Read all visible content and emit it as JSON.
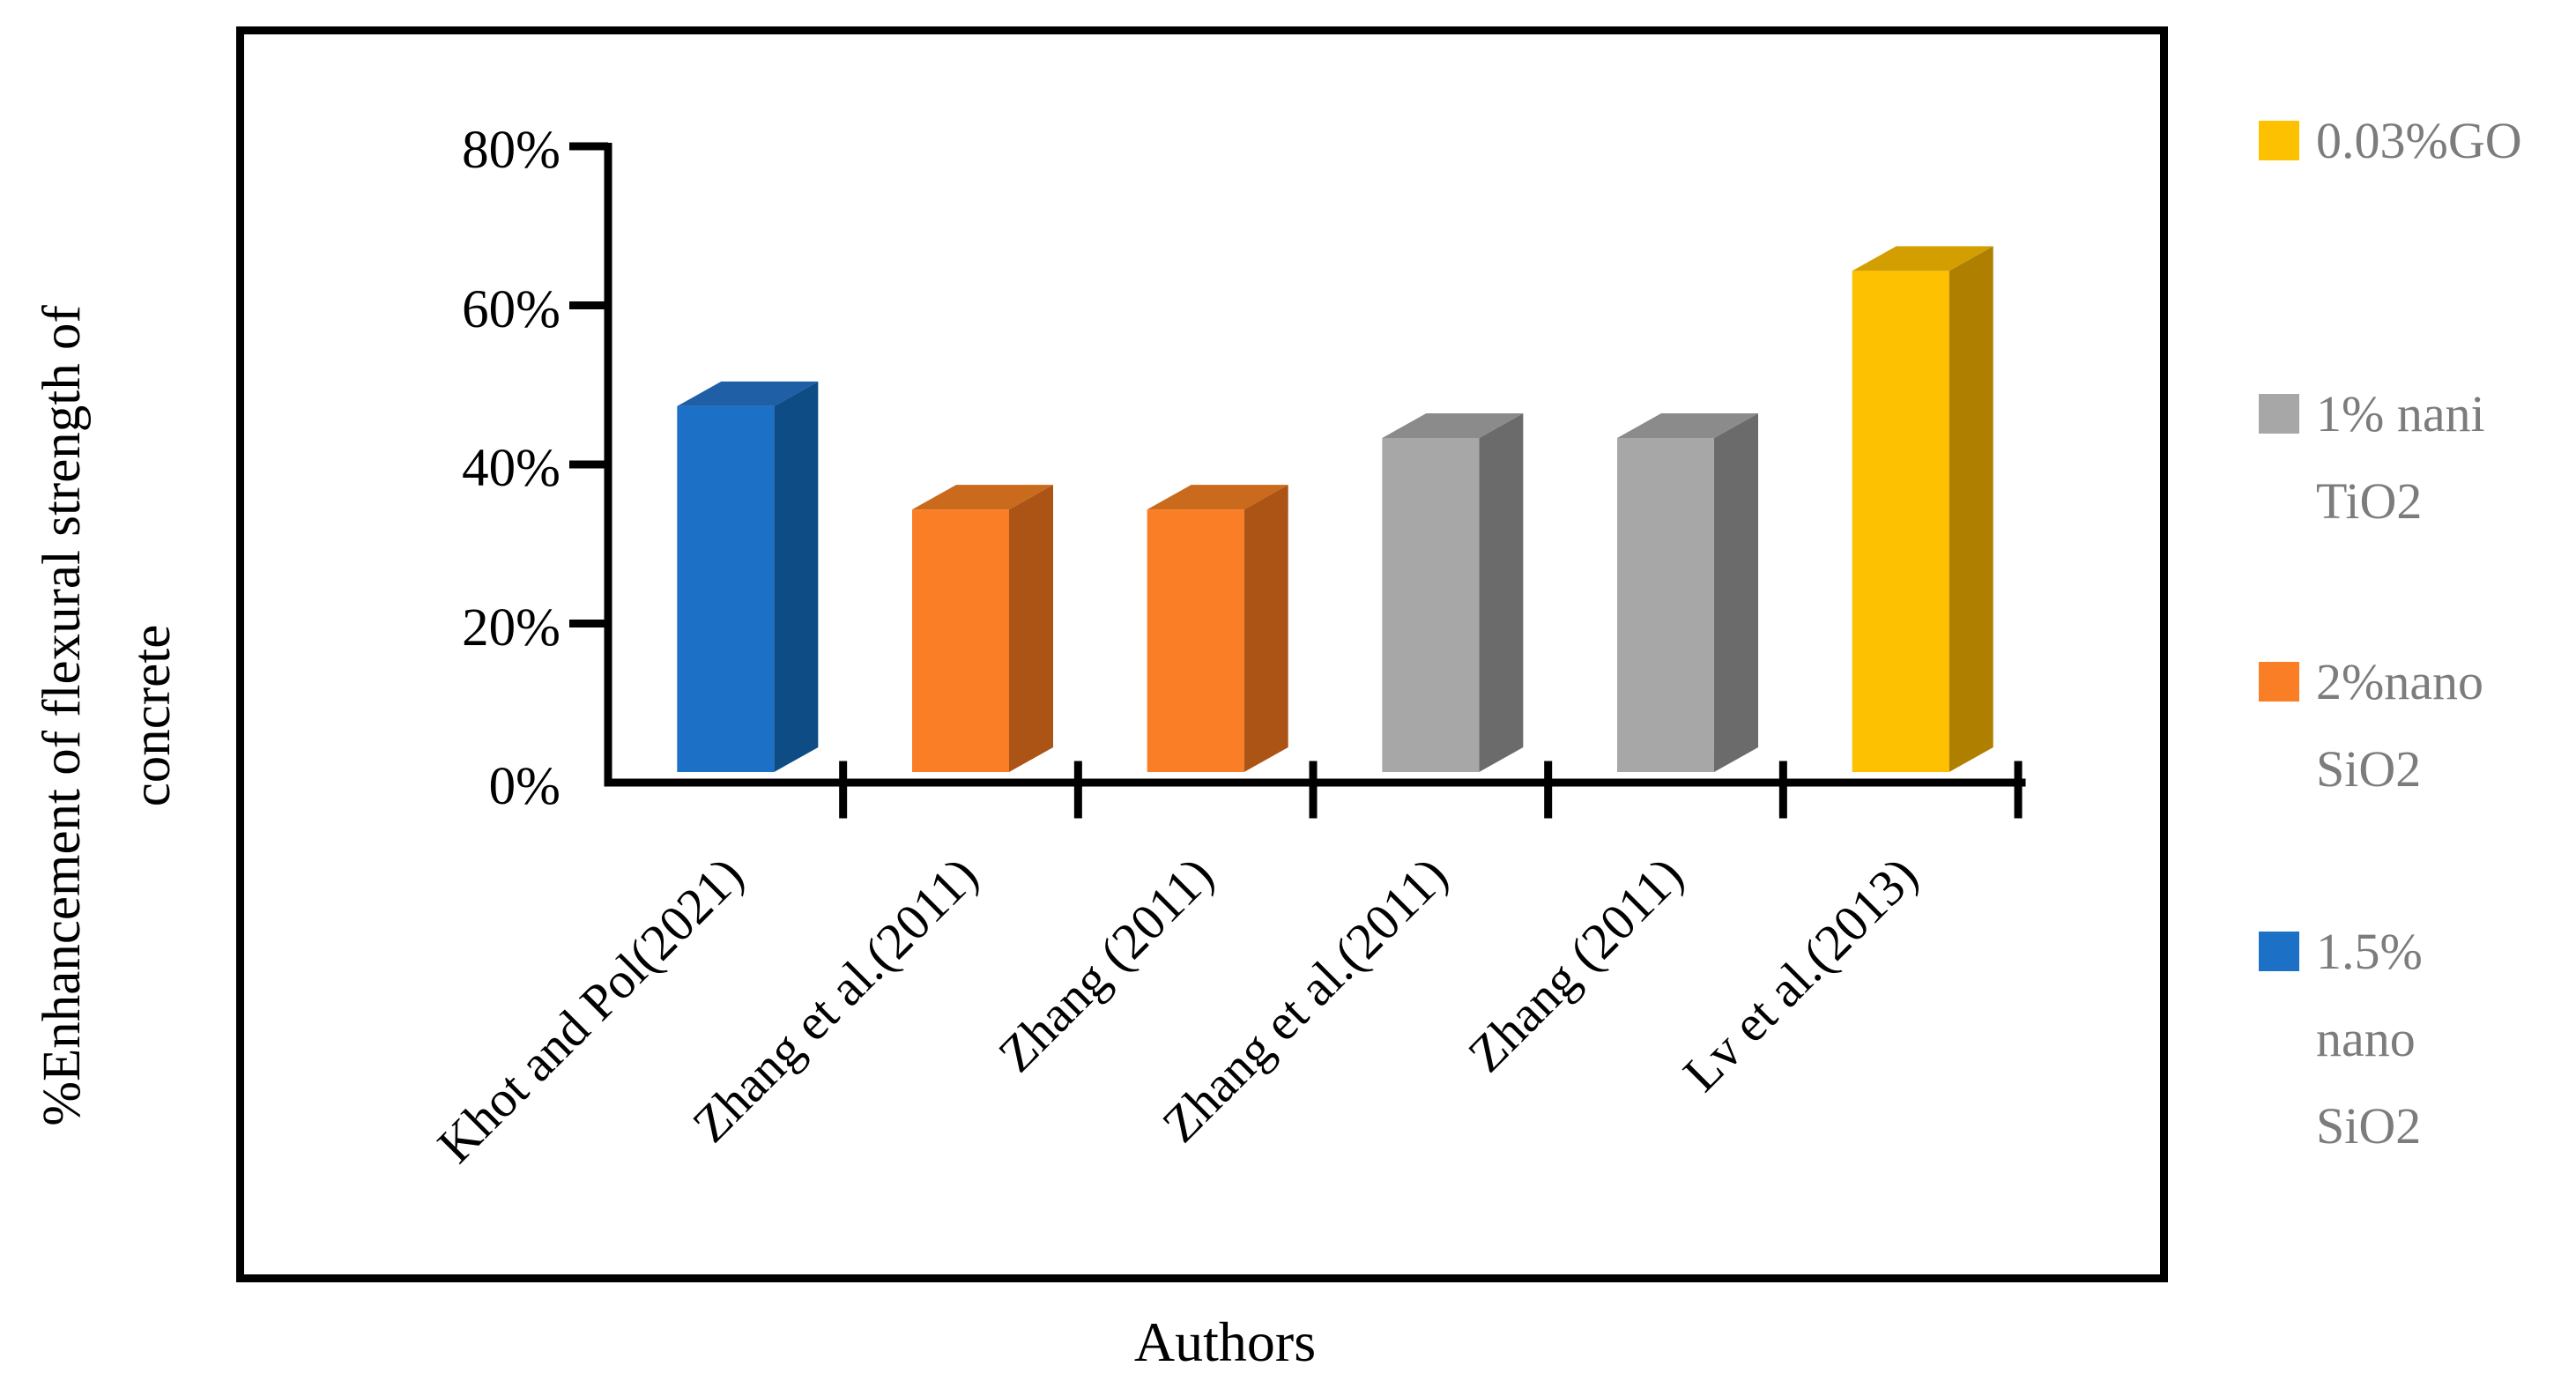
{
  "figure": {
    "y_axis_title_line1": "%Enhancement of flexural strength of",
    "y_axis_title_line2": "concrete",
    "x_axis_title": "Authors"
  },
  "chart_data": {
    "type": "bar",
    "style": "3d",
    "title": "",
    "xlabel": "Authors",
    "ylabel": "%Enhancement of flexural strength of concrete",
    "categories": [
      "Khot and Pol(2021)",
      "Zhang et al.(2011)",
      "Zhang (2011)",
      "Zhang et al.(2011)",
      "Zhang (2011)",
      "Lv et al.(2013)"
    ],
    "values": [
      46,
      33,
      33,
      42,
      42,
      63
    ],
    "series_of_bar": [
      "1.5% nano SiO2",
      "2%nano SiO2",
      "2%nano SiO2",
      "1% nani TiO2",
      "1% nani TiO2",
      "0.03%GO"
    ],
    "bar_palette_keys": [
      "blue",
      "orange",
      "orange",
      "gray",
      "gray",
      "yellow"
    ],
    "unit": "%",
    "ylim": [
      0,
      80
    ],
    "ytick_values": [
      0,
      20,
      40,
      60,
      80
    ],
    "ytick_labels": [
      "0%",
      "20%",
      "40%",
      "60%",
      "80%"
    ],
    "grid": false,
    "legend_position": "right-outside"
  },
  "palette": {
    "blue": {
      "front": "#1C71C7",
      "side": "#0E4C86",
      "top": "#1E5FA6"
    },
    "orange": {
      "front": "#F97E26",
      "side": "#AC5316",
      "top": "#C96A1C"
    },
    "gray": {
      "front": "#A7A7A7",
      "side": "#6B6B6B",
      "top": "#8B8B8B"
    },
    "yellow": {
      "front": "#FEC101",
      "side": "#AF7F00",
      "top": "#D39F00"
    }
  },
  "legend": {
    "text_color": "#7C7C7C",
    "items": [
      {
        "label": "0.03%GO",
        "lines": "0.03%GO",
        "color": "#FEC101"
      },
      {
        "label": "1% nani TiO2",
        "lines": "1% nani\nTiO2",
        "color": "#A7A7A7"
      },
      {
        "label": "2%nano SiO2",
        "lines": "2%nano\nSiO2",
        "color": "#F97E26"
      },
      {
        "label": "1.5% nano SiO2",
        "lines": "1.5%\nnano\nSiO2",
        "color": "#1C71C7"
      }
    ]
  },
  "axis_color": "#000000"
}
